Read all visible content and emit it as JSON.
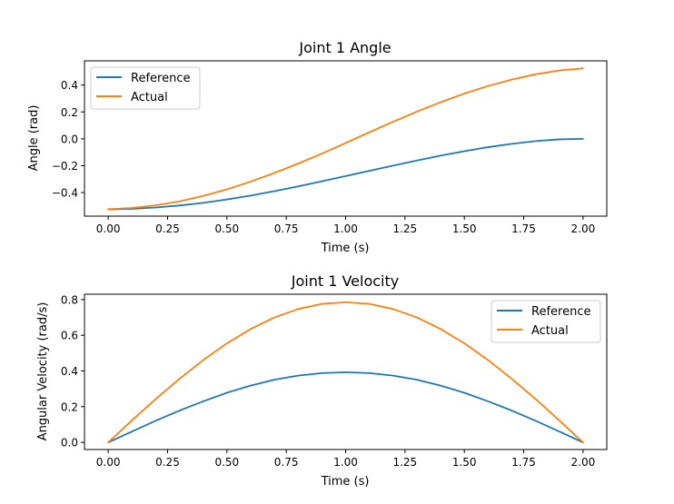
{
  "chart_data": [
    {
      "type": "line",
      "title": "Joint 1 Angle",
      "xlabel": "Time (s)",
      "ylabel": "Angle (rad)",
      "xlim": [
        -0.1,
        2.1
      ],
      "ylim": [
        -0.575,
        0.58
      ],
      "xticks": [
        0.0,
        0.25,
        0.5,
        0.75,
        1.0,
        1.25,
        1.5,
        1.75,
        2.0
      ],
      "xtick_labels": [
        "0.00",
        "0.25",
        "0.50",
        "0.75",
        "1.00",
        "1.25",
        "1.50",
        "1.75",
        "2.00"
      ],
      "yticks": [
        -0.4,
        -0.2,
        0.0,
        0.2,
        0.4
      ],
      "ytick_labels": [
        "−0.4",
        "−0.2",
        "0.0",
        "0.2",
        "0.4"
      ],
      "grid": false,
      "legend": "top-left",
      "series": [
        {
          "name": "Reference",
          "color": "#1f77b4",
          "x": [
            0.0,
            0.1,
            0.2,
            0.3,
            0.4,
            0.5,
            0.6,
            0.7,
            0.8,
            0.9,
            1.0,
            1.1,
            1.2,
            1.3,
            1.4,
            1.5,
            1.6,
            1.7,
            1.8,
            1.9,
            2.0
          ],
          "y": [
            -0.524,
            -0.521,
            -0.511,
            -0.496,
            -0.476,
            -0.451,
            -0.422,
            -0.389,
            -0.354,
            -0.316,
            -0.277,
            -0.238,
            -0.199,
            -0.161,
            -0.125,
            -0.092,
            -0.062,
            -0.037,
            -0.017,
            -0.004,
            0.0
          ]
        },
        {
          "name": "Actual",
          "color": "#ff7f0e",
          "x": [
            0.0,
            0.1,
            0.2,
            0.3,
            0.4,
            0.5,
            0.6,
            0.7,
            0.8,
            0.9,
            1.0,
            1.1,
            1.2,
            1.3,
            1.4,
            1.5,
            1.6,
            1.7,
            1.8,
            1.9,
            2.0
          ],
          "y": [
            -0.524,
            -0.514,
            -0.495,
            -0.465,
            -0.425,
            -0.376,
            -0.318,
            -0.254,
            -0.184,
            -0.11,
            -0.031,
            0.049,
            0.127,
            0.202,
            0.272,
            0.337,
            0.393,
            0.441,
            0.48,
            0.508,
            0.524
          ]
        }
      ]
    },
    {
      "type": "line",
      "title": "Joint 1 Velocity",
      "xlabel": "Time (s)",
      "ylabel": "Angular Velocity (rad/s)",
      "xlim": [
        -0.1,
        2.1
      ],
      "ylim": [
        -0.04,
        0.83
      ],
      "xticks": [
        0.0,
        0.25,
        0.5,
        0.75,
        1.0,
        1.25,
        1.5,
        1.75,
        2.0
      ],
      "xtick_labels": [
        "0.00",
        "0.25",
        "0.50",
        "0.75",
        "1.00",
        "1.25",
        "1.50",
        "1.75",
        "2.00"
      ],
      "yticks": [
        0.0,
        0.2,
        0.4,
        0.6,
        0.8
      ],
      "ytick_labels": [
        "0.0",
        "0.2",
        "0.4",
        "0.6",
        "0.8"
      ],
      "grid": false,
      "legend": "top-right",
      "series": [
        {
          "name": "Reference",
          "color": "#1f77b4",
          "x": [
            0.0,
            0.1,
            0.2,
            0.3,
            0.4,
            0.5,
            0.6,
            0.7,
            0.8,
            0.9,
            1.0,
            1.1,
            1.2,
            1.3,
            1.4,
            1.5,
            1.6,
            1.7,
            1.8,
            1.9,
            2.0
          ],
          "y": [
            0.0,
            0.061,
            0.121,
            0.178,
            0.23,
            0.278,
            0.318,
            0.351,
            0.374,
            0.388,
            0.393,
            0.388,
            0.374,
            0.351,
            0.318,
            0.278,
            0.23,
            0.178,
            0.121,
            0.061,
            0.0
          ]
        },
        {
          "name": "Actual",
          "color": "#ff7f0e",
          "x": [
            0.0,
            0.1,
            0.2,
            0.3,
            0.4,
            0.5,
            0.6,
            0.7,
            0.8,
            0.9,
            1.0,
            1.1,
            1.2,
            1.3,
            1.4,
            1.5,
            1.6,
            1.7,
            1.8,
            1.9,
            2.0
          ],
          "y": [
            0.0,
            0.123,
            0.243,
            0.356,
            0.461,
            0.555,
            0.635,
            0.7,
            0.747,
            0.776,
            0.785,
            0.776,
            0.747,
            0.7,
            0.635,
            0.555,
            0.461,
            0.356,
            0.243,
            0.123,
            0.0
          ]
        }
      ]
    }
  ]
}
